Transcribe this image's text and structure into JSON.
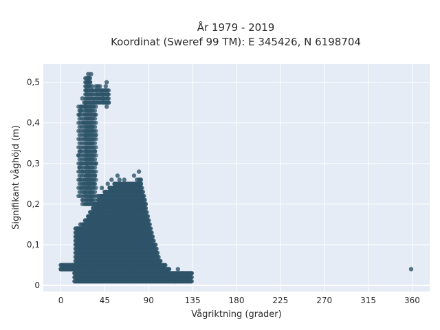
{
  "chart_data": {
    "type": "scatter",
    "title": "År 1979 - 2019",
    "subtitle": "Koordinat (Sweref 99 TM): E 345426, N 6198704",
    "xlabel": "Vågriktning (grader)",
    "ylabel": "Signifikant våghöjd (m)",
    "xlim": [
      -18,
      378
    ],
    "ylim": [
      -0.015,
      0.545
    ],
    "x_ticks": [
      0,
      45,
      90,
      135,
      180,
      225,
      270,
      315,
      360
    ],
    "x_tick_labels": [
      "0",
      "45",
      "90",
      "135",
      "180",
      "225",
      "270",
      "315",
      "360"
    ],
    "y_ticks": [
      0,
      0.1,
      0.2,
      0.3,
      0.4,
      0.5
    ],
    "y_tick_labels": [
      "0",
      "0,1",
      "0,2",
      "0,3",
      "0,4",
      "0,5"
    ],
    "grid": true,
    "legend": "none",
    "marker_color": "#2e5468",
    "background_color": "#e5ecf6",
    "points": [
      [
        0,
        0.04
      ],
      [
        3,
        0.04
      ],
      [
        6,
        0.04
      ],
      [
        8,
        0.05
      ],
      [
        10,
        0.04
      ],
      [
        12,
        0.05
      ],
      [
        14,
        0.03
      ],
      [
        15,
        0.02
      ],
      [
        17,
        0.14
      ],
      [
        18,
        0.12
      ],
      [
        20,
        0.15
      ],
      [
        22,
        0.1
      ],
      [
        25,
        0.16
      ],
      [
        28,
        0.17
      ],
      [
        30,
        0.12
      ],
      [
        32,
        0.18
      ],
      [
        35,
        0.2
      ],
      [
        38,
        0.22
      ],
      [
        40,
        0.21
      ],
      [
        42,
        0.24
      ],
      [
        45,
        0.23
      ],
      [
        48,
        0.25
      ],
      [
        50,
        0.24
      ],
      [
        52,
        0.26
      ],
      [
        55,
        0.25
      ],
      [
        58,
        0.27
      ],
      [
        60,
        0.26
      ],
      [
        62,
        0.25
      ],
      [
        65,
        0.26
      ],
      [
        68,
        0.24
      ],
      [
        70,
        0.25
      ],
      [
        72,
        0.24
      ],
      [
        75,
        0.27
      ],
      [
        78,
        0.26
      ],
      [
        80,
        0.28
      ],
      [
        82,
        0.25
      ],
      [
        84,
        0.22
      ],
      [
        86,
        0.2
      ],
      [
        88,
        0.17
      ],
      [
        90,
        0.14
      ],
      [
        92,
        0.12
      ],
      [
        95,
        0.1
      ],
      [
        98,
        0.08
      ],
      [
        100,
        0.06
      ],
      [
        105,
        0.04
      ],
      [
        110,
        0.04
      ],
      [
        115,
        0.03
      ],
      [
        120,
        0.04
      ],
      [
        125,
        0.03
      ],
      [
        130,
        0.03
      ],
      [
        134,
        0.03
      ],
      [
        102,
        0.05
      ],
      [
        108,
        0.03
      ],
      [
        112,
        0.02
      ],
      [
        118,
        0.02
      ],
      [
        117,
        0.01
      ],
      [
        122,
        0.02
      ],
      [
        25,
        0.44
      ],
      [
        26,
        0.48
      ],
      [
        27,
        0.5
      ],
      [
        28,
        0.52
      ],
      [
        29,
        0.51
      ],
      [
        30,
        0.5
      ],
      [
        31,
        0.52
      ],
      [
        32,
        0.49
      ],
      [
        24,
        0.45
      ],
      [
        22,
        0.46
      ],
      [
        21,
        0.44
      ],
      [
        20,
        0.43
      ],
      [
        19,
        0.42
      ],
      [
        23,
        0.4
      ],
      [
        25,
        0.37
      ],
      [
        26,
        0.33
      ],
      [
        27,
        0.3
      ],
      [
        28,
        0.27
      ],
      [
        29,
        0.25
      ],
      [
        30,
        0.23
      ],
      [
        31,
        0.21
      ],
      [
        33,
        0.19
      ],
      [
        34,
        0.45
      ],
      [
        35,
        0.42
      ],
      [
        36,
        0.49
      ],
      [
        38,
        0.49
      ],
      [
        40,
        0.49
      ],
      [
        42,
        0.48
      ],
      [
        43,
        0.46
      ],
      [
        44,
        0.45
      ],
      [
        46,
        0.49
      ],
      [
        47,
        0.5
      ],
      [
        48,
        0.47
      ],
      [
        49,
        0.45
      ],
      [
        47,
        0.44
      ],
      [
        20,
        0.33
      ],
      [
        21,
        0.3
      ],
      [
        22,
        0.28
      ],
      [
        23,
        0.25
      ],
      [
        24,
        0.23
      ],
      [
        18,
        0.32
      ],
      [
        19,
        0.29
      ],
      [
        20,
        0.26
      ],
      [
        21,
        0.24
      ],
      [
        22,
        0.21
      ],
      [
        35,
        0.33
      ],
      [
        36,
        0.3
      ],
      [
        35,
        0.27
      ],
      [
        34,
        0.25
      ],
      [
        36,
        0.37
      ],
      [
        359,
        0.04
      ]
    ]
  }
}
